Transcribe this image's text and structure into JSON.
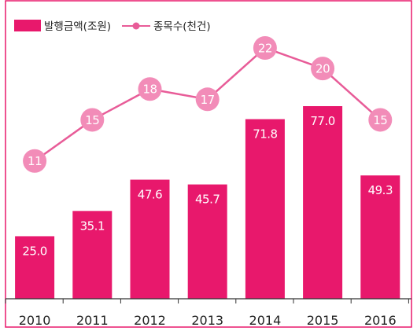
{
  "chart_data": {
    "type": "bar+line",
    "categories": [
      "2010",
      "2011",
      "2012",
      "2013",
      "2014",
      "2015",
      "2016"
    ],
    "series": [
      {
        "name": "발행금액(조원)",
        "kind": "bar",
        "values": [
          25.0,
          35.1,
          47.6,
          45.7,
          71.8,
          77.0,
          49.3
        ],
        "labels": [
          "25.0",
          "35.1",
          "47.6",
          "45.7",
          "71.8",
          "77.0",
          "49.3"
        ],
        "color": "#e8186c"
      },
      {
        "name": "종목수(천건)",
        "kind": "line",
        "values": [
          11,
          15,
          18,
          17,
          22,
          20,
          15
        ],
        "labels": [
          "11",
          "15",
          "18",
          "17",
          "22",
          "20",
          "15"
        ],
        "color": "#e85c98",
        "marker_fill": "#f28cb8"
      }
    ],
    "bar_ylim": [
      0,
      85
    ],
    "line_ylim": [
      0,
      26
    ],
    "legend_placement": "top-left",
    "grid": false,
    "border_color": "#e8186c"
  }
}
